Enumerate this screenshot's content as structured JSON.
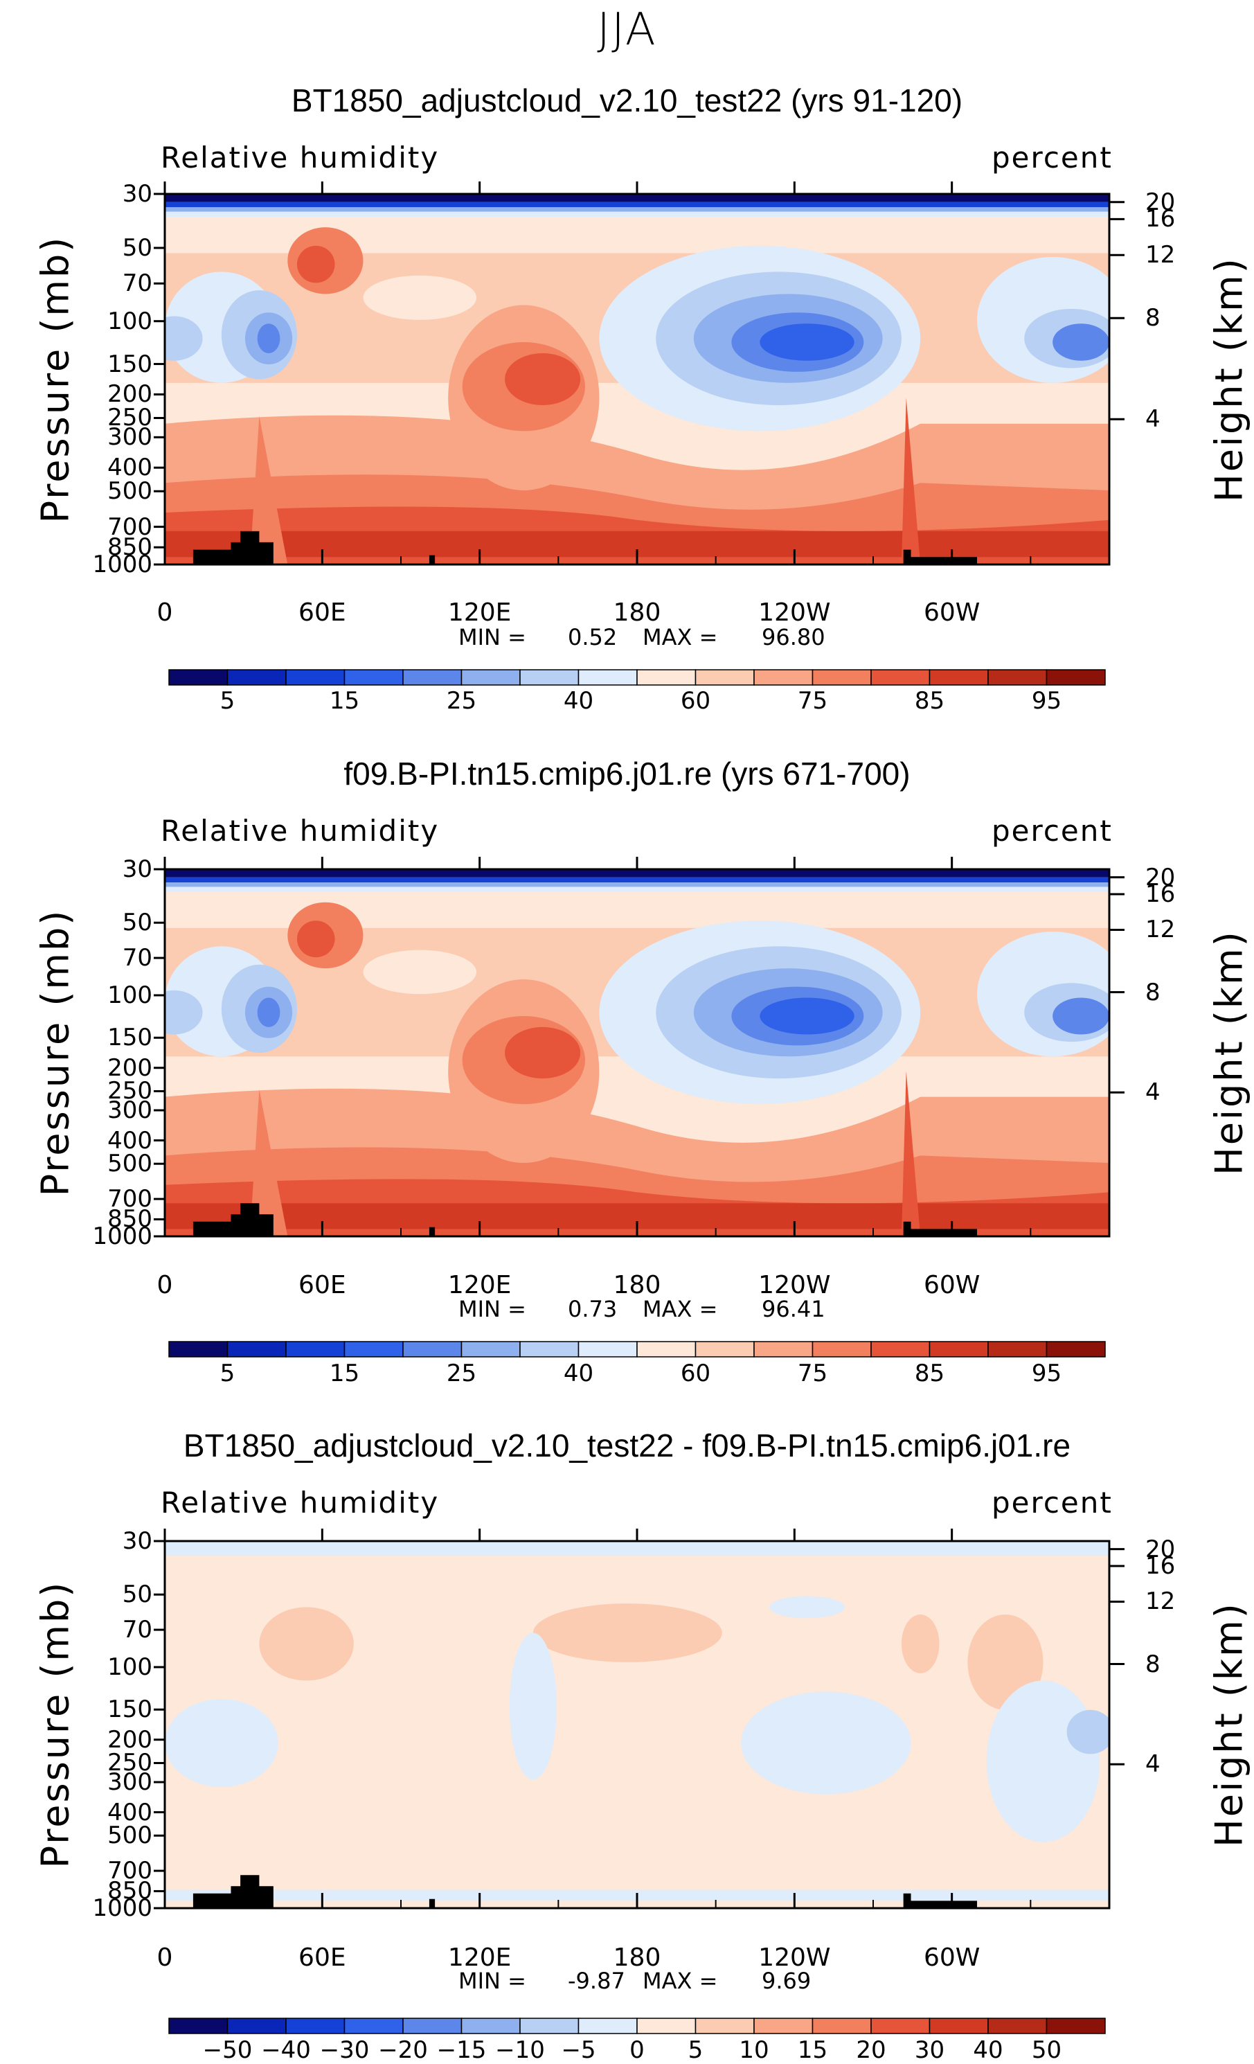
{
  "season": "JJA",
  "chart_data": [
    {
      "type": "heatmap",
      "title": "BT1850_adjustcloud_v2.10_test22 (yrs 91-120)",
      "left_label": "Relative humidity",
      "right_label": "percent",
      "ylabel": "Pressure (mb)",
      "ylabel_right": "Height (km)",
      "x_ticks": [
        "0",
        "60E",
        "120E",
        "180",
        "120W",
        "60W"
      ],
      "y_ticks": [
        "30",
        "50",
        "70",
        "100",
        "150",
        "200",
        "250",
        "300",
        "400",
        "500",
        "700",
        "850",
        "1000"
      ],
      "height_ticks": [
        "20",
        "16",
        "12",
        "8",
        "4"
      ],
      "min_label": "MIN =",
      "min_value": "0.52",
      "max_label": "MAX =",
      "max_value": "96.80",
      "colorbar_ticks": [
        "5",
        "15",
        "25",
        "40",
        "60",
        "75",
        "85",
        "95"
      ]
    },
    {
      "type": "heatmap",
      "title": "f09.B-PI.tn15.cmip6.j01.re (yrs 671-700)",
      "left_label": "Relative humidity",
      "right_label": "percent",
      "ylabel": "Pressure (mb)",
      "ylabel_right": "Height (km)",
      "x_ticks": [
        "0",
        "60E",
        "120E",
        "180",
        "120W",
        "60W"
      ],
      "y_ticks": [
        "30",
        "50",
        "70",
        "100",
        "150",
        "200",
        "250",
        "300",
        "400",
        "500",
        "700",
        "850",
        "1000"
      ],
      "height_ticks": [
        "20",
        "16",
        "12",
        "8",
        "4"
      ],
      "min_label": "MIN =",
      "min_value": "0.73",
      "max_label": "MAX =",
      "max_value": "96.41",
      "colorbar_ticks": [
        "5",
        "15",
        "25",
        "40",
        "60",
        "75",
        "85",
        "95"
      ]
    },
    {
      "type": "heatmap",
      "title": "BT1850_adjustcloud_v2.10_test22 - f09.B-PI.tn15.cmip6.j01.re",
      "left_label": "Relative humidity",
      "right_label": "percent",
      "ylabel": "Pressure (mb)",
      "ylabel_right": "Height (km)",
      "x_ticks": [
        "0",
        "60E",
        "120E",
        "180",
        "120W",
        "60W"
      ],
      "y_ticks": [
        "30",
        "50",
        "70",
        "100",
        "150",
        "200",
        "250",
        "300",
        "400",
        "500",
        "700",
        "850",
        "1000"
      ],
      "height_ticks": [
        "20",
        "16",
        "12",
        "8",
        "4"
      ],
      "min_label": "MIN =",
      "min_value": "-9.87",
      "max_label": "MAX =",
      "max_value": "9.69",
      "colorbar_ticks": [
        "−50",
        "−40",
        "−30",
        "−20",
        "−15",
        "−10",
        "−5",
        "0",
        "5",
        "10",
        "15",
        "20",
        "30",
        "40",
        "50"
      ]
    }
  ],
  "colors": {
    "seq": [
      "#08086b",
      "#0a26b8",
      "#1541d6",
      "#2f62e8",
      "#5c86ea",
      "#8fb0ee",
      "#b8d0f4",
      "#dfecfb",
      "#fde8d9",
      "#fbcbb2",
      "#f8a686",
      "#f27f5e",
      "#e6553a",
      "#d33a23",
      "#b52b17",
      "#8a1208"
    ],
    "diff": [
      "#08086b",
      "#0a26b8",
      "#1541d6",
      "#2f62e8",
      "#5c86ea",
      "#8fb0ee",
      "#b8d0f4",
      "#dfecfb",
      "#fde8d9",
      "#fbcbb2",
      "#f8a686",
      "#f27f5e",
      "#e6553a",
      "#d33a23",
      "#b52b17",
      "#8a1208"
    ]
  }
}
